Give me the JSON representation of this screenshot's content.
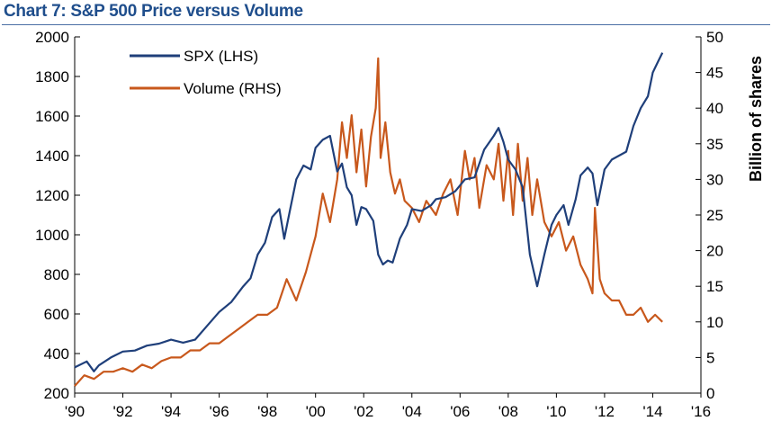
{
  "chart_data": {
    "type": "line",
    "title": "Chart 7: S&P 500 Price versus Volume",
    "xlabel": "",
    "ylabel": "",
    "y2label": "Billion of  shares",
    "x_range": [
      1990,
      2016
    ],
    "ylim": [
      200,
      2000
    ],
    "y2lim": [
      0,
      50
    ],
    "x_ticks": [
      1990,
      1992,
      1994,
      1996,
      1998,
      2000,
      2002,
      2004,
      2006,
      2008,
      2010,
      2012,
      2014,
      2016
    ],
    "x_tick_labels": [
      "'90",
      "'92",
      "'94",
      "'96",
      "'98",
      "'00",
      "'02",
      "'04",
      "'06",
      "'08",
      "'10",
      "'12",
      "'14",
      "'16"
    ],
    "y_ticks": [
      200,
      400,
      600,
      800,
      1000,
      1200,
      1400,
      1600,
      1800,
      2000
    ],
    "y_tick_labels": [
      "200",
      "400",
      "600",
      "800",
      "1000",
      "1200",
      "1400",
      "1600",
      "1800",
      "2000"
    ],
    "y2_ticks": [
      0,
      5,
      10,
      15,
      20,
      25,
      30,
      35,
      40,
      45,
      50
    ],
    "y2_tick_labels": [
      "0",
      "5",
      "10",
      "15",
      "20",
      "25",
      "30",
      "35",
      "40",
      "45",
      "50"
    ],
    "grid": false,
    "legend_position": "top-left",
    "series": [
      {
        "name": "SPX (LHS)",
        "axis": "left",
        "color": "#1f3f7a",
        "x": [
          1990.0,
          1990.5,
          1990.8,
          1991.0,
          1991.5,
          1992.0,
          1992.5,
          1993.0,
          1993.5,
          1994.0,
          1994.5,
          1995.0,
          1995.5,
          1996.0,
          1996.5,
          1997.0,
          1997.3,
          1997.6,
          1997.9,
          1998.2,
          1998.5,
          1998.7,
          1998.9,
          1999.2,
          1999.5,
          1999.8,
          2000.0,
          2000.3,
          2000.6,
          2000.9,
          2001.1,
          2001.3,
          2001.5,
          2001.7,
          2001.9,
          2002.1,
          2002.4,
          2002.6,
          2002.8,
          2003.0,
          2003.2,
          2003.5,
          2003.8,
          2004.0,
          2004.4,
          2004.8,
          2005.0,
          2005.4,
          2005.8,
          2006.2,
          2006.6,
          2007.0,
          2007.4,
          2007.6,
          2007.8,
          2008.0,
          2008.3,
          2008.6,
          2008.9,
          2009.2,
          2009.5,
          2009.8,
          2010.0,
          2010.3,
          2010.5,
          2010.8,
          2011.0,
          2011.3,
          2011.5,
          2011.7,
          2012.0,
          2012.3,
          2012.6,
          2012.9,
          2013.2,
          2013.5,
          2013.8,
          2014.0,
          2014.2,
          2014.4
        ],
        "values": [
          330,
          360,
          310,
          340,
          380,
          410,
          415,
          440,
          450,
          470,
          455,
          470,
          540,
          610,
          660,
          740,
          780,
          900,
          960,
          1090,
          1130,
          980,
          1100,
          1280,
          1350,
          1330,
          1440,
          1480,
          1500,
          1320,
          1360,
          1240,
          1200,
          1050,
          1140,
          1130,
          1070,
          900,
          850,
          870,
          860,
          980,
          1050,
          1130,
          1120,
          1150,
          1180,
          1190,
          1220,
          1280,
          1290,
          1430,
          1500,
          1540,
          1470,
          1380,
          1330,
          1240,
          900,
          740,
          900,
          1050,
          1100,
          1150,
          1050,
          1180,
          1300,
          1340,
          1310,
          1150,
          1330,
          1380,
          1400,
          1420,
          1550,
          1640,
          1700,
          1820,
          1870,
          1920
        ]
      },
      {
        "name": "Volume (RHS)",
        "axis": "right",
        "color": "#c8581c",
        "x": [
          1990.0,
          1990.4,
          1990.8,
          1991.2,
          1991.6,
          1992.0,
          1992.4,
          1992.8,
          1993.2,
          1993.6,
          1994.0,
          1994.4,
          1994.8,
          1995.2,
          1995.6,
          1996.0,
          1996.4,
          1996.8,
          1997.2,
          1997.6,
          1998.0,
          1998.4,
          1998.8,
          1999.2,
          1999.6,
          2000.0,
          2000.3,
          2000.6,
          2000.9,
          2001.1,
          2001.3,
          2001.5,
          2001.7,
          2001.9,
          2002.1,
          2002.3,
          2002.5,
          2002.6,
          2002.7,
          2002.9,
          2003.1,
          2003.3,
          2003.5,
          2003.7,
          2004.0,
          2004.3,
          2004.6,
          2005.0,
          2005.3,
          2005.6,
          2005.9,
          2006.2,
          2006.4,
          2006.6,
          2006.8,
          2007.1,
          2007.4,
          2007.6,
          2007.8,
          2008.0,
          2008.2,
          2008.4,
          2008.6,
          2008.8,
          2009.0,
          2009.2,
          2009.5,
          2009.8,
          2010.1,
          2010.4,
          2010.7,
          2011.0,
          2011.3,
          2011.5,
          2011.6,
          2011.8,
          2012.0,
          2012.3,
          2012.6,
          2012.9,
          2013.2,
          2013.5,
          2013.8,
          2014.1,
          2014.4
        ],
        "values": [
          1,
          2.5,
          2,
          3,
          3,
          3.5,
          3,
          4,
          3.5,
          4.5,
          5,
          5,
          6,
          6,
          7,
          7,
          8,
          9,
          10,
          11,
          11,
          12,
          16,
          13,
          17,
          22,
          28,
          24,
          30,
          38,
          33,
          39,
          31,
          37,
          29,
          36,
          40,
          47,
          33,
          38,
          31,
          28,
          30,
          27,
          26,
          24,
          27,
          25,
          28,
          30,
          25,
          34,
          30,
          33,
          26,
          32,
          30,
          35,
          27,
          34,
          25,
          35,
          27,
          33,
          25,
          30,
          24,
          22,
          24,
          20,
          22,
          18,
          16,
          14,
          26,
          16,
          14,
          13,
          13,
          11,
          11,
          12,
          10,
          11,
          10
        ]
      }
    ]
  }
}
